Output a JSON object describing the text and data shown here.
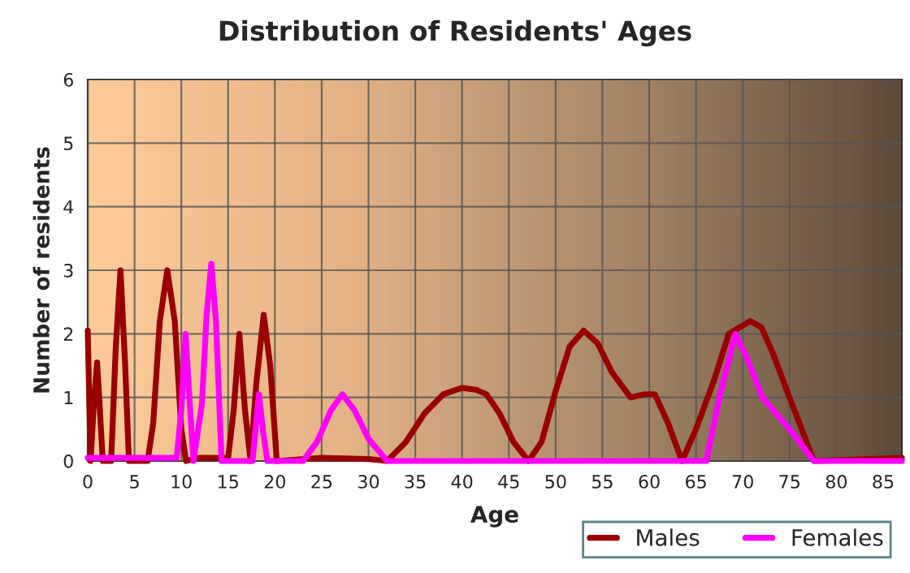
{
  "chart_data": {
    "type": "line",
    "title": "Distribution of Residents' Ages",
    "xlabel": "Age",
    "ylabel": "Number of residents",
    "xlim": [
      0,
      87
    ],
    "xticks": [
      0,
      5,
      10,
      15,
      20,
      25,
      30,
      35,
      40,
      45,
      50,
      55,
      60,
      65,
      70,
      75,
      80,
      85
    ],
    "ylim": [
      0,
      6
    ],
    "yticks": [
      0,
      1,
      2,
      3,
      4,
      5,
      6
    ],
    "grid": true,
    "legend": "bottom right",
    "marker": "none",
    "line_style": "solid",
    "series": [
      {
        "name": "Males",
        "color": "#990000",
        "x": [
          0,
          0.3,
          0.7,
          1,
          1.3,
          1.6,
          2.5,
          3,
          3.5,
          4,
          4.4,
          6.4,
          7,
          7.7,
          8.5,
          9.3,
          10,
          10.5,
          12,
          14,
          15,
          15.6,
          16.2,
          16.8,
          17.4,
          18,
          18.8,
          19.5,
          20.2,
          25,
          30,
          32,
          34,
          36,
          38,
          40,
          41.5,
          42.6,
          44,
          45.5,
          47.1,
          48.5,
          50,
          51.5,
          53,
          54.5,
          56,
          58,
          59.5,
          60.6,
          62,
          63.5,
          65,
          67,
          68.5,
          70.8,
          72,
          73.2,
          75,
          77.6,
          82,
          87
        ],
        "values": [
          2.05,
          0,
          1.0,
          1.55,
          0.8,
          0,
          0,
          1.8,
          3,
          1.5,
          0,
          0,
          0.6,
          2.2,
          3,
          2.2,
          0.5,
          0,
          0.05,
          0.05,
          0.05,
          0.8,
          2,
          0.8,
          0,
          1.2,
          2.3,
          1.5,
          0,
          0.05,
          0.03,
          0,
          0.3,
          0.75,
          1.05,
          1.15,
          1.12,
          1.05,
          0.75,
          0.3,
          0,
          0.3,
          1.1,
          1.8,
          2.05,
          1.85,
          1.4,
          1.0,
          1.05,
          1.05,
          0.6,
          0,
          0.5,
          1.3,
          2,
          2.2,
          2.1,
          1.7,
          1.0,
          0,
          0.02,
          0.05
        ]
      },
      {
        "name": "Females",
        "color": "#ff00ff",
        "x": [
          0,
          9.5,
          10,
          10.45,
          10.9,
          11.3,
          12.2,
          12.7,
          13.2,
          13.7,
          14.3,
          17.6,
          18,
          18.3,
          18.7,
          19.2,
          23,
          24.5,
          26,
          27.2,
          28.5,
          30,
          32,
          63.5,
          66.1,
          67.5,
          69.2,
          70.5,
          72.1,
          75,
          77.6,
          87
        ],
        "values": [
          0.05,
          0.05,
          0.8,
          2.0,
          0.9,
          0,
          0.9,
          2.3,
          3.1,
          2.2,
          0,
          0,
          0.6,
          1.05,
          0.5,
          0,
          0,
          0.3,
          0.8,
          1.05,
          0.8,
          0.35,
          0,
          0,
          0,
          1.0,
          2,
          1.6,
          1.0,
          0.5,
          0,
          0
        ]
      }
    ]
  }
}
